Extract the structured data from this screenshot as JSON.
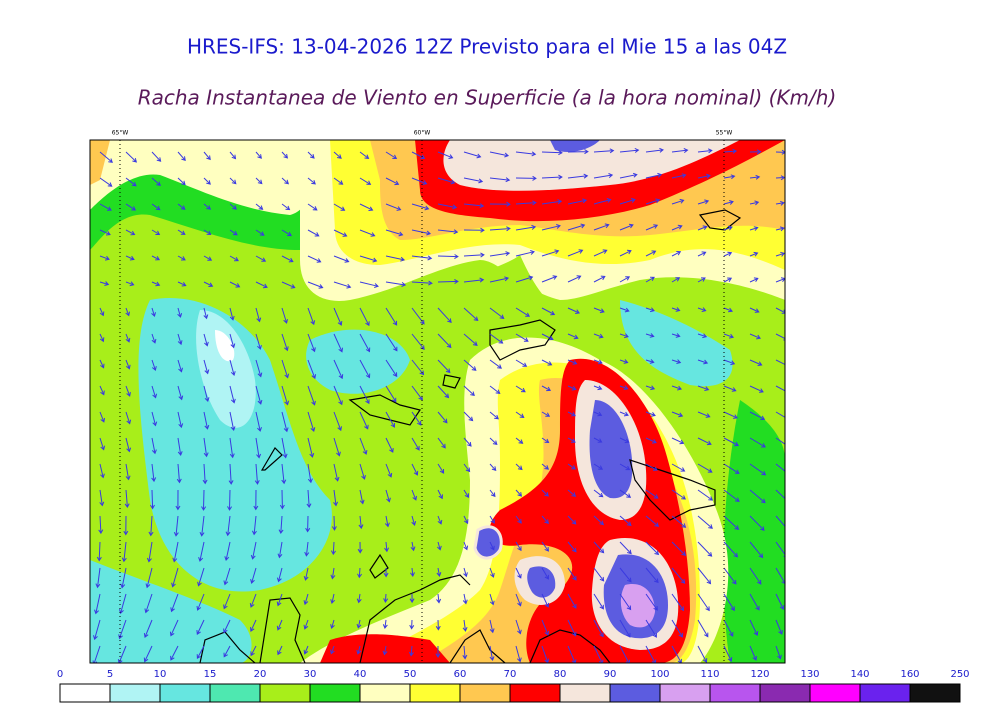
{
  "header": {
    "title": "HRES-IFS: 13-04-2026 12Z Previsto para el Mie 15 a las 04Z",
    "subtitle": "Racha Instantanea de Viento en Superficie (a la hora nominal) (Km/h)"
  },
  "map": {
    "meridians": [
      "65°W",
      "60°W",
      "55°W"
    ]
  },
  "colorbar": {
    "levels": [
      0,
      5,
      10,
      15,
      20,
      30,
      40,
      50,
      60,
      70,
      80,
      90,
      100,
      110,
      120,
      130,
      140,
      160,
      250
    ],
    "colors": [
      "#ffffff",
      "#b0f4f4",
      "#66e6e0",
      "#4ee8b0",
      "#a8ee1a",
      "#22dd22",
      "#ffffc0",
      "#ffff33",
      "#ffc850",
      "#ff0000",
      "#f5e6dc",
      "#5c5ce0",
      "#d8a0f0",
      "#b855ee",
      "#8a2ab0",
      "#ff00ff",
      "#6a22ee",
      "#111111"
    ]
  }
}
